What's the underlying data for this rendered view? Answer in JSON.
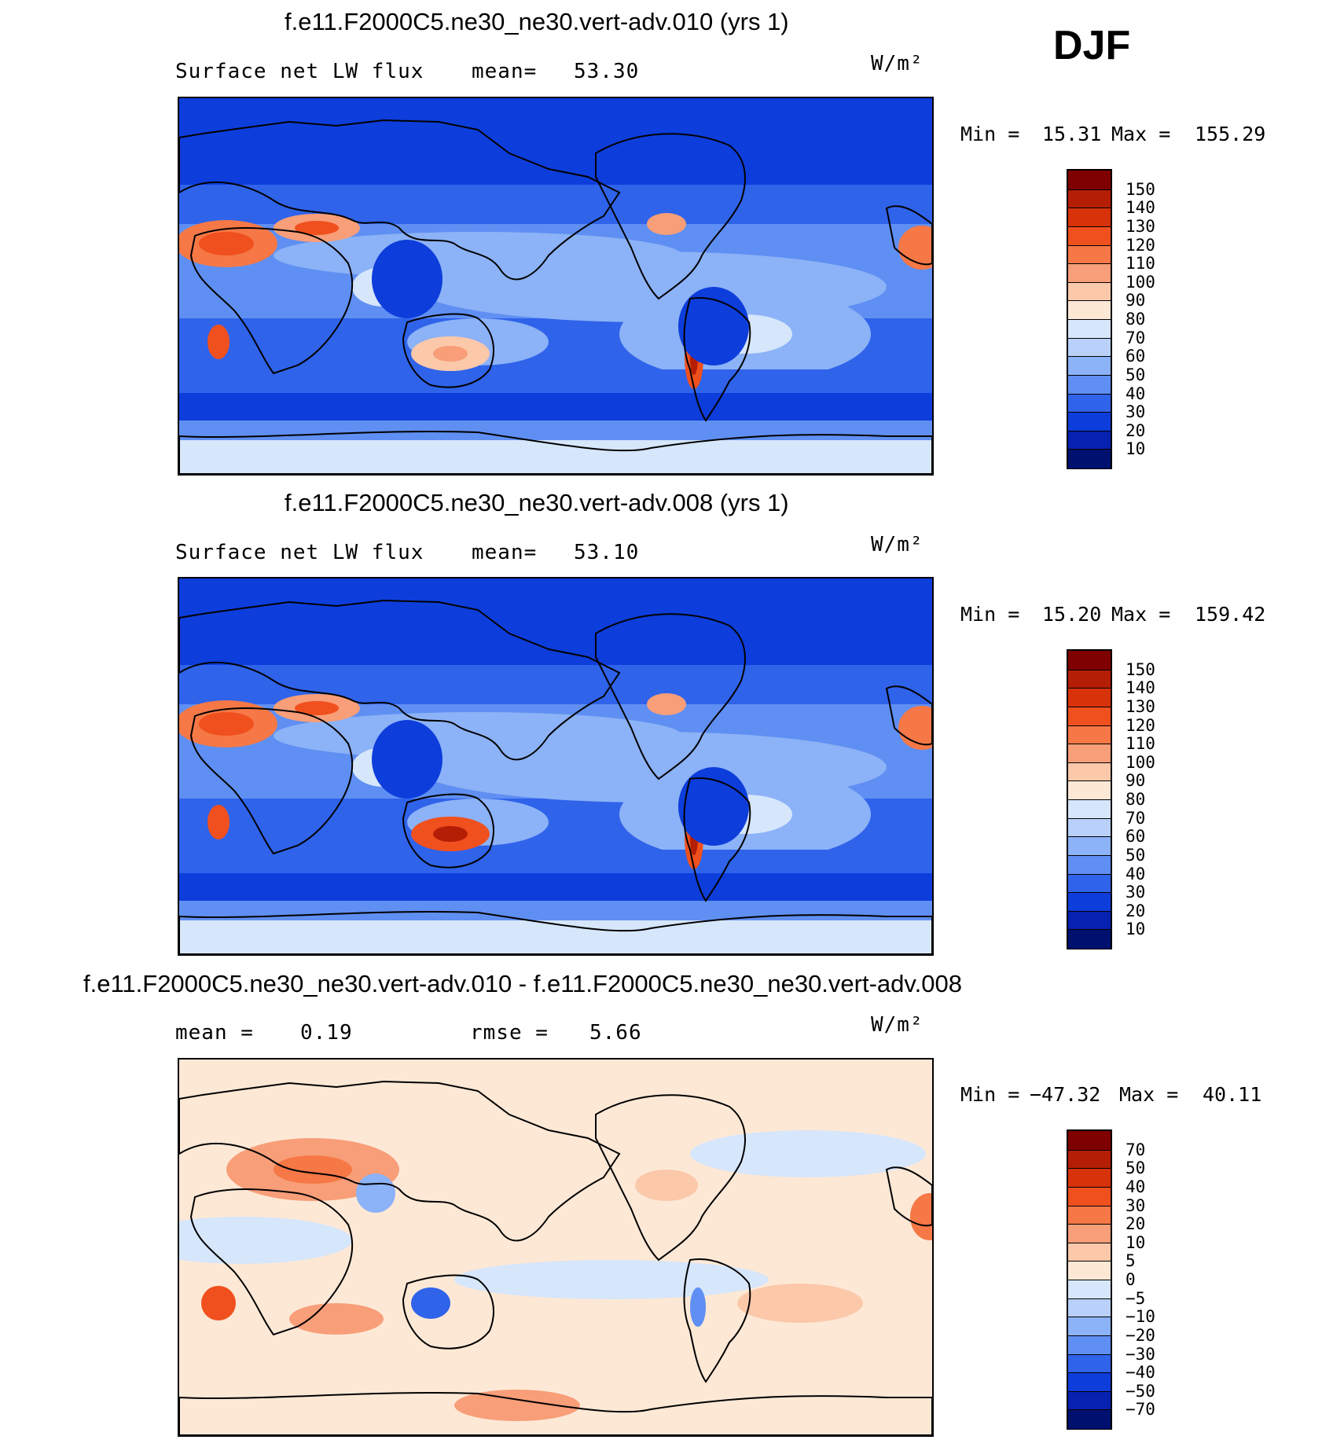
{
  "season_label": "DJF",
  "panels": [
    {
      "id": "panel-1",
      "title": "f.e11.F2000C5.ne30_ne30.vert-adv.010 (yrs 1)",
      "variable": "Surface net LW flux",
      "stat_label": "mean=",
      "stat_value": "53.30",
      "units": "W/m²",
      "min_label": "Min =",
      "min_value": "15.31",
      "max_label": "Max =",
      "max_value": "155.29"
    },
    {
      "id": "panel-2",
      "title": "f.e11.F2000C5.ne30_ne30.vert-adv.008 (yrs 1)",
      "variable": "Surface net LW flux",
      "stat_label": "mean=",
      "stat_value": "53.10",
      "units": "W/m²",
      "min_label": "Min =",
      "min_value": "15.20",
      "max_label": "Max =",
      "max_value": "159.42"
    },
    {
      "id": "panel-3",
      "title": "f.e11.F2000C5.ne30_ne30.vert-adv.010 - f.e11.F2000C5.ne30_ne30.vert-adv.008",
      "mean_label": "mean =",
      "mean_value": "0.19",
      "rmse_label": "rmse =",
      "rmse_value": "5.66",
      "units": "W/m²",
      "min_label": "Min =",
      "min_value": "−47.32",
      "max_label": "Max =",
      "max_value": "40.11"
    }
  ],
  "chart_data": [
    {
      "type": "heatmap",
      "title": "f.e11.F2000C5.ne30_ne30.vert-adv.010 (yrs 1)",
      "variable": "Surface net LW flux",
      "units": "W/m2",
      "mean": 53.3,
      "min": 15.31,
      "max": 155.29,
      "colorbar_levels": [
        150,
        140,
        130,
        120,
        110,
        100,
        90,
        80,
        70,
        60,
        50,
        40,
        30,
        20,
        10
      ],
      "colorbar_colors": [
        "#7f0000",
        "#b41e05",
        "#d8320a",
        "#f0501e",
        "#f57846",
        "#f89e78",
        "#fbc8aa",
        "#fde8d6",
        "#d6e6fb",
        "#b8d0fa",
        "#8cb2f7",
        "#5f8ff2",
        "#2f63ea",
        "#0d3ddb",
        "#0721b0",
        "#00106e"
      ]
    },
    {
      "type": "heatmap",
      "title": "f.e11.F2000C5.ne30_ne30.vert-adv.008 (yrs 1)",
      "variable": "Surface net LW flux",
      "units": "W/m2",
      "mean": 53.1,
      "min": 15.2,
      "max": 159.42,
      "colorbar_levels": [
        150,
        140,
        130,
        120,
        110,
        100,
        90,
        80,
        70,
        60,
        50,
        40,
        30,
        20,
        10
      ],
      "colorbar_colors": [
        "#7f0000",
        "#b41e05",
        "#d8320a",
        "#f0501e",
        "#f57846",
        "#f89e78",
        "#fbc8aa",
        "#fde8d6",
        "#d6e6fb",
        "#b8d0fa",
        "#8cb2f7",
        "#5f8ff2",
        "#2f63ea",
        "#0d3ddb",
        "#0721b0",
        "#00106e"
      ]
    },
    {
      "type": "heatmap",
      "title": "f.e11.F2000C5.ne30_ne30.vert-adv.010 - f.e11.F2000C5.ne30_ne30.vert-adv.008",
      "units": "W/m2",
      "mean": 0.19,
      "rmse": 5.66,
      "min": -47.32,
      "max": 40.11,
      "colorbar_levels": [
        "70",
        "50",
        "40",
        "30",
        "20",
        "10",
        "5",
        "0",
        "−5",
        "−10",
        "−20",
        "−30",
        "−40",
        "−50",
        "−70"
      ],
      "colorbar_colors": [
        "#7f0000",
        "#b41e05",
        "#d8320a",
        "#f0501e",
        "#f57846",
        "#f89e78",
        "#fbc8aa",
        "#fde8d6",
        "#d6e6fb",
        "#b8d0fa",
        "#8cb2f7",
        "#5f8ff2",
        "#2f63ea",
        "#0d3ddb",
        "#0721b0",
        "#00106e"
      ]
    }
  ]
}
